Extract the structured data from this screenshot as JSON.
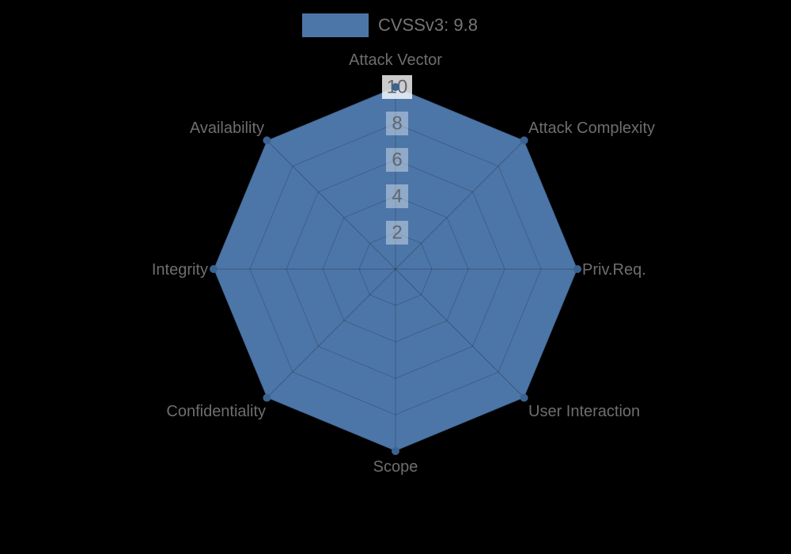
{
  "chart_data": {
    "type": "radar",
    "title": "",
    "legend": {
      "label": "CVSSv3: 9.8",
      "position": "top"
    },
    "categories": [
      "Attack Vector",
      "Attack Complexity",
      "Priv.Req.",
      "User Interaction",
      "Scope",
      "Confidentiality",
      "Integrity",
      "Availability"
    ],
    "series": [
      {
        "name": "CVSSv3: 9.8",
        "values": [
          10,
          10,
          10,
          10,
          10,
          10,
          10,
          10
        ]
      }
    ],
    "r_axis": {
      "min": 0,
      "max": 10,
      "step": 2,
      "tick_labels": [
        "2",
        "4",
        "6",
        "8",
        "10"
      ]
    },
    "grid": true,
    "legend_position": "top",
    "colors": {
      "background": "#000000",
      "fill": "#4d76a8",
      "marker": "#3b6391",
      "polygon_border": "rgba(0,0,0,0.08)",
      "grid_line": "rgba(0,0,0,0.16)",
      "axis_line": "rgba(0,0,0,0.2)",
      "axis_label_text": "#6e6e6e",
      "tick_text": "#60666d",
      "tick_backdrop": "rgba(255,255,255,0.38)",
      "tick_backdrop_outer": "rgba(255,255,255,0.8)",
      "legend_text": "#757575"
    }
  }
}
